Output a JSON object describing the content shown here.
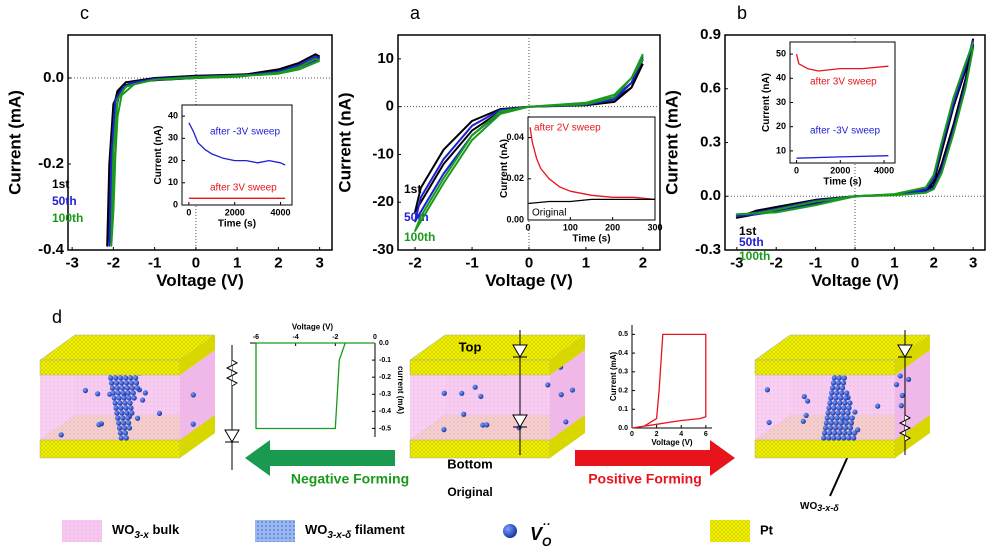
{
  "chart_data": [
    {
      "type": "line",
      "label": "c",
      "xlabel": "Voltage (V)",
      "ylabel": "Current (mA)",
      "xlim": [
        -3.1,
        3.3
      ],
      "ylim": [
        -0.4,
        0.1
      ],
      "xticks": [
        -3,
        -2,
        -1,
        0,
        1,
        2,
        3
      ],
      "yticks": [
        -0.4,
        -0.2,
        {
          "value": 0,
          "label": "0.0"
        }
      ],
      "series": [
        {
          "name": "1st",
          "color": "#000000",
          "x": [
            3,
            2.5,
            2,
            1.5,
            1,
            0,
            -1,
            -1.7,
            -1.9,
            -2.0,
            -2.05,
            -2.1,
            -2.15,
            -2.1,
            -2.0,
            -1.8,
            -1.5,
            -1,
            0,
            1,
            2,
            2.5,
            2.9,
            3
          ],
          "values": [
            0.05,
            0.03,
            0.015,
            0.01,
            0.008,
            0.005,
            0,
            -0.01,
            -0.03,
            -0.07,
            -0.15,
            -0.28,
            -0.39,
            -0.2,
            -0.06,
            -0.02,
            -0.01,
            -0.005,
            0,
            0.005,
            0.02,
            0.035,
            0.055,
            0.05
          ]
        },
        {
          "name": "50th",
          "color": "#1f1fd6",
          "x": [
            3,
            2.5,
            2,
            1.5,
            1,
            0,
            -1,
            -1.6,
            -1.85,
            -1.95,
            -2.0,
            -2.05,
            -2.1,
            -2.05,
            -1.95,
            -1.75,
            -1.4,
            -1,
            0,
            1,
            2,
            2.5,
            2.9,
            3
          ],
          "values": [
            0.045,
            0.025,
            0.012,
            0.008,
            0.006,
            0.003,
            -0.002,
            -0.012,
            -0.035,
            -0.08,
            -0.17,
            -0.3,
            -0.39,
            -0.18,
            -0.05,
            -0.02,
            -0.01,
            -0.004,
            0,
            0.004,
            0.015,
            0.03,
            0.05,
            0.045
          ]
        },
        {
          "name": "100th",
          "color": "#1a9a1a",
          "x": [
            3,
            2.5,
            2,
            1.5,
            1,
            0,
            -1,
            -1.5,
            -1.8,
            -1.9,
            -1.95,
            -2.0,
            -2.05,
            -2.0,
            -1.9,
            -1.7,
            -1.3,
            -1,
            0,
            1,
            2,
            2.5,
            2.9,
            3
          ],
          "values": [
            0.04,
            0.02,
            0.01,
            0.007,
            0.005,
            0.002,
            -0.004,
            -0.015,
            -0.04,
            -0.09,
            -0.18,
            -0.31,
            -0.39,
            -0.17,
            -0.05,
            -0.02,
            -0.01,
            -0.004,
            0,
            0.003,
            0.012,
            0.025,
            0.045,
            0.04
          ]
        }
      ]
    },
    {
      "type": "line",
      "label": "a",
      "xlabel": "Voltage (V)",
      "ylabel": "Current (nA)",
      "xlim": [
        -2.3,
        2.3
      ],
      "ylim": [
        -30,
        15
      ],
      "xticks": [
        -2,
        -1,
        0,
        1,
        2
      ],
      "yticks": [
        -30,
        -20,
        -10,
        0,
        10
      ],
      "series": [
        {
          "name": "1st",
          "color": "#000000",
          "x": [
            2,
            1.8,
            1.5,
            1,
            0,
            -0.5,
            -1,
            -1.5,
            -1.8,
            -2,
            -1.9,
            -1.5,
            -1,
            -0.5,
            0,
            1,
            1.5,
            1.8,
            2
          ],
          "values": [
            9,
            4,
            1.5,
            0.5,
            0,
            -1,
            -5,
            -12,
            -18,
            -22,
            -17,
            -9,
            -3,
            -0.5,
            0,
            0.3,
            1,
            4,
            10
          ]
        },
        {
          "name": "50th",
          "color": "#1f1fd6",
          "x": [
            2,
            1.8,
            1.5,
            1,
            0,
            -0.5,
            -1,
            -1.5,
            -1.8,
            -2,
            -1.9,
            -1.5,
            -1,
            -0.5,
            0,
            1,
            1.5,
            1.8,
            2
          ],
          "values": [
            10,
            5,
            2,
            0.6,
            0,
            -1.2,
            -6,
            -14,
            -20,
            -24,
            -19,
            -11,
            -4,
            -0.7,
            0,
            0.4,
            1.5,
            5,
            10.5
          ]
        },
        {
          "name": "100th",
          "color": "#1a9a1a",
          "x": [
            2,
            1.8,
            1.5,
            1,
            0,
            -0.5,
            -1,
            -1.5,
            -1.8,
            -2,
            -1.9,
            -1.5,
            -1,
            -0.5,
            0,
            1,
            1.5,
            1.8,
            2
          ],
          "values": [
            10,
            6,
            2.5,
            0.8,
            0,
            -1.5,
            -7,
            -16,
            -22,
            -26,
            -23,
            -15,
            -6,
            -1,
            0,
            0.5,
            2,
            6,
            11
          ]
        }
      ]
    },
    {
      "type": "line",
      "label": "b",
      "xlabel": "Voltage (V)",
      "ylabel": "Current (mA)",
      "xlim": [
        -3.3,
        3.3
      ],
      "ylim": [
        -0.3,
        0.9
      ],
      "xticks": [
        -3,
        -2,
        -1,
        0,
        1,
        2,
        3
      ],
      "yticks": [
        -0.3,
        {
          "value": 0,
          "label": "0.0"
        },
        0.3,
        0.6,
        0.9
      ],
      "series": [
        {
          "name": "1st",
          "color": "#000000",
          "x": [
            3,
            2.8,
            2.5,
            2.2,
            2,
            1.8,
            1,
            0,
            -1,
            -2,
            -2.5,
            -3,
            -2.5,
            -2,
            -1,
            0,
            1,
            1.8,
            2,
            2.2,
            2.5,
            2.8,
            3
          ],
          "values": [
            0.85,
            0.65,
            0.4,
            0.18,
            0.06,
            0.03,
            0.01,
            0,
            -0.02,
            -0.06,
            -0.08,
            -0.12,
            -0.1,
            -0.08,
            -0.04,
            0,
            0.01,
            0.03,
            0.08,
            0.25,
            0.5,
            0.7,
            0.88
          ]
        },
        {
          "name": "50th",
          "color": "#1f1fd6",
          "x": [
            3,
            2.8,
            2.5,
            2.2,
            2,
            1.8,
            1,
            0,
            -1,
            -2,
            -2.5,
            -3,
            -2.5,
            -2,
            -1,
            0,
            1,
            1.8,
            2,
            2.2,
            2.5,
            2.8,
            3
          ],
          "values": [
            0.84,
            0.62,
            0.37,
            0.15,
            0.05,
            0.025,
            0.008,
            0,
            -0.025,
            -0.07,
            -0.09,
            -0.11,
            -0.1,
            -0.085,
            -0.045,
            0,
            0.01,
            0.04,
            0.1,
            0.28,
            0.52,
            0.72,
            0.87
          ]
        },
        {
          "name": "100th",
          "color": "#1a9a1a",
          "x": [
            3,
            2.8,
            2.5,
            2.2,
            2,
            1.8,
            1,
            0,
            -1,
            -2,
            -2.5,
            -3,
            -2.5,
            -2,
            -1,
            0,
            1,
            1.8,
            2,
            2.2,
            2.5,
            2.8,
            3
          ],
          "values": [
            0.83,
            0.6,
            0.35,
            0.13,
            0.04,
            0.02,
            0.006,
            0,
            -0.03,
            -0.075,
            -0.095,
            -0.1,
            -0.095,
            -0.09,
            -0.05,
            0,
            0.012,
            0.05,
            0.12,
            0.3,
            0.55,
            0.74,
            0.86
          ]
        }
      ]
    },
    {
      "type": "line",
      "xlabel": "Time (s)",
      "ylabel": "Current (nA)",
      "xlim": [
        -300,
        4500
      ],
      "ylim": [
        0,
        45
      ],
      "xticks": [
        0,
        2000,
        4000
      ],
      "yticks": [
        0,
        10,
        20,
        30,
        40
      ],
      "series": [
        {
          "name": "after -3V sweep",
          "color": "#1f1fd6",
          "x": [
            0,
            200,
            400,
            700,
            1000,
            1500,
            2000,
            2500,
            3000,
            3500,
            4000,
            4200
          ],
          "values": [
            37,
            33,
            28,
            25,
            23,
            21,
            20,
            20,
            19,
            20,
            19,
            18
          ]
        },
        {
          "name": "after 3V sweep",
          "color": "#e8141c",
          "x": [
            0,
            1000,
            2000,
            3000,
            4200
          ],
          "values": [
            3,
            3,
            3,
            3,
            3
          ]
        }
      ]
    },
    {
      "type": "line",
      "xlabel": "Time (s)",
      "ylabel": "Current (nA)",
      "xlim": [
        0,
        300
      ],
      "ylim": [
        0,
        0.05
      ],
      "xticks": [
        0,
        100,
        200,
        300
      ],
      "yticks": [
        {
          "value": 0,
          "label": "0.00"
        },
        0.02,
        0.04
      ],
      "series": [
        {
          "name": "after 2V sweep",
          "color": "#e8141c",
          "x": [
            5,
            10,
            20,
            30,
            50,
            75,
            100,
            150,
            200,
            250,
            300
          ],
          "values": [
            0.045,
            0.038,
            0.03,
            0.025,
            0.02,
            0.016,
            0.014,
            0.012,
            0.011,
            0.011,
            0.01
          ]
        },
        {
          "name": "Original",
          "color": "#000000",
          "x": [
            0,
            50,
            100,
            150,
            200,
            250,
            300
          ],
          "values": [
            0.008,
            0.009,
            0.009,
            0.01,
            0.01,
            0.01,
            0.01
          ]
        }
      ]
    },
    {
      "type": "line",
      "xlabel": "Time (s)",
      "ylabel": "Current (nA)",
      "xlim": [
        -300,
        4500
      ],
      "ylim": [
        5,
        55
      ],
      "xticks": [
        0,
        2000,
        4000
      ],
      "yticks": [
        10,
        20,
        30,
        40,
        50
      ],
      "series": [
        {
          "name": "after 3V sweep",
          "color": "#e8141c",
          "x": [
            0,
            100,
            500,
            1000,
            2000,
            3000,
            4200
          ],
          "values": [
            50,
            46,
            44,
            43,
            44,
            44,
            45
          ]
        },
        {
          "name": "after -3V sweep",
          "color": "#1f1fd6",
          "x": [
            0,
            2000,
            4200
          ],
          "values": [
            7,
            7.5,
            8
          ]
        }
      ]
    },
    {
      "type": "line",
      "xlabel": "Voltage (V)",
      "ylabel": "current (mA)",
      "xlim": [
        -6.3,
        0
      ],
      "ylim": [
        -0.55,
        0
      ],
      "xticks": [
        -6,
        -4,
        -2,
        0
      ],
      "yticks": [
        {
          "value": 0,
          "label": "0.0"
        },
        -0.1,
        -0.2,
        -0.3,
        -0.4,
        -0.5
      ],
      "series": [
        {
          "color": "#1a9a1a",
          "x": [
            0,
            -6,
            -6,
            -2,
            -1.8,
            -1.5,
            0
          ],
          "values": [
            0,
            0,
            -0.5,
            -0.5,
            -0.1,
            0,
            0
          ]
        }
      ]
    },
    {
      "type": "line",
      "xlabel": "Voltage (V)",
      "ylabel": "Current (mA)",
      "xlim": [
        0,
        6.5
      ],
      "ylim": [
        0,
        0.55
      ],
      "xticks": [
        0,
        2,
        4,
        6
      ],
      "yticks": [
        {
          "value": 0,
          "label": "0.0"
        },
        0.1,
        0.2,
        0.3,
        0.4,
        0.5
      ],
      "series": [
        {
          "color": "#e8141c",
          "x": [
            0,
            1,
            2,
            2.2,
            2.5,
            6,
            6,
            5.5,
            4,
            3,
            2,
            1,
            0
          ],
          "values": [
            0,
            0.01,
            0.05,
            0.2,
            0.5,
            0.5,
            0.06,
            0.05,
            0.04,
            0.03,
            0.02,
            0.01,
            0
          ]
        }
      ]
    }
  ],
  "diagram": {
    "label": "d",
    "negative_forming": "Negative Forming",
    "positive_forming": "Positive Forming",
    "top": "Top",
    "bottom": "Bottom",
    "original": "Original",
    "filament_label": {
      "base": "WO",
      "sub": "3-x-δ"
    },
    "legend": [
      {
        "base": "WO",
        "sub": "3-x",
        "text": " bulk"
      },
      {
        "base": "WO",
        "sub": "3-x-δ",
        "text": " filament"
      },
      {
        "base": "V",
        "sub": "O",
        "sup": "··"
      },
      {
        "text": "Pt"
      }
    ]
  }
}
